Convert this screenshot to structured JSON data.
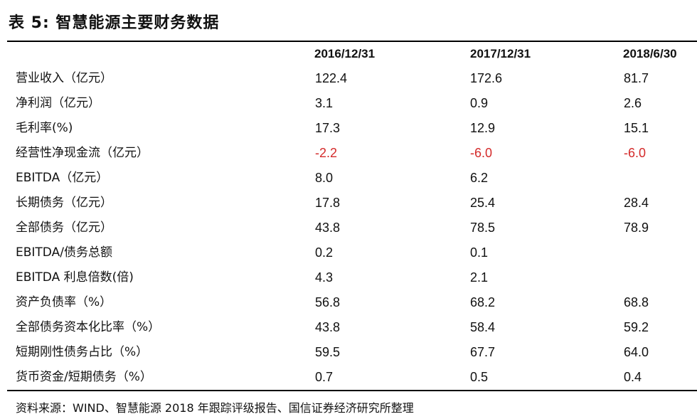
{
  "title": "表 5:  智慧能源主要财务数据",
  "columns": [
    "2016/12/31",
    "2017/12/31",
    "2018/6/30"
  ],
  "rows": [
    {
      "label": "营业收入（亿元）",
      "values": [
        "122.4",
        "172.6",
        "81.7"
      ]
    },
    {
      "label": "净利润（亿元）",
      "values": [
        "3.1",
        "0.9",
        "2.6"
      ]
    },
    {
      "label": "毛利率(%)",
      "values": [
        "17.3",
        "12.9",
        "15.1"
      ]
    },
    {
      "label": "经营性净现金流（亿元）",
      "values": [
        "-2.2",
        "-6.0",
        "-6.0"
      ]
    },
    {
      "label": "EBITDA（亿元）",
      "values": [
        "8.0",
        "6.2",
        ""
      ]
    },
    {
      "label": "长期债务（亿元）",
      "values": [
        "17.8",
        "25.4",
        "28.4"
      ]
    },
    {
      "label": "全部债务（亿元）",
      "values": [
        "43.8",
        "78.5",
        "78.9"
      ]
    },
    {
      "label": "EBITDA/债务总额",
      "values": [
        "0.2",
        "0.1",
        ""
      ]
    },
    {
      "label": "EBITDA 利息倍数(倍)",
      "values": [
        "4.3",
        "2.1",
        ""
      ]
    },
    {
      "label": "资产负债率（%）",
      "values": [
        "56.8",
        "68.2",
        "68.8"
      ]
    },
    {
      "label": "全部债务资本化比率（%）",
      "values": [
        "43.8",
        "58.4",
        "59.2"
      ]
    },
    {
      "label": "短期刚性债务占比（%）",
      "values": [
        "59.5",
        "67.7",
        "64.0"
      ]
    },
    {
      "label": "货币资金/短期债务（%）",
      "values": [
        "0.7",
        "0.5",
        "0.4"
      ]
    }
  ],
  "source": "资料来源：WIND、智慧能源 2018 年跟踪评级报告、国信证券经济研究所整理",
  "colors": {
    "negative": "#d42a2a",
    "text": "#111111",
    "rule": "#000000"
  }
}
